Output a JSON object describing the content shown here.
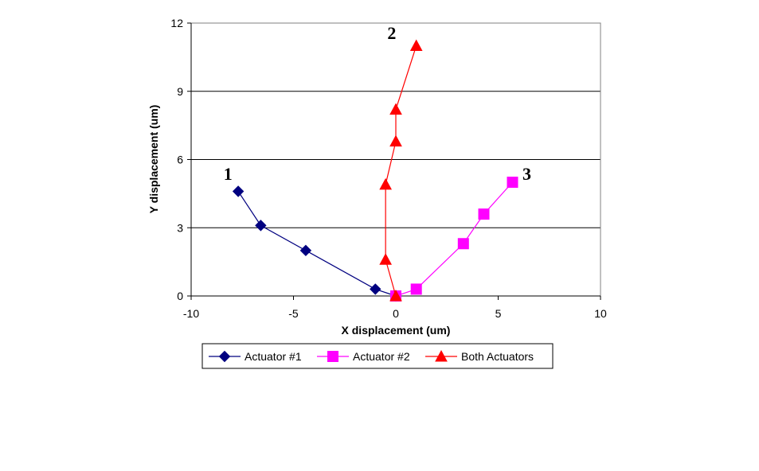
{
  "chart_data": {
    "type": "line",
    "xlabel": "X displacement (um)",
    "ylabel": "Y displacement (um)",
    "xlim": [
      -10,
      10
    ],
    "ylim": [
      0,
      12
    ],
    "xticks": [
      -10,
      -5,
      0,
      5,
      10
    ],
    "yticks": [
      0,
      3,
      6,
      9,
      12
    ],
    "grid": "horizontal",
    "legend_position": "bottom",
    "series": [
      {
        "name": "Actuator #1",
        "color": "#000080",
        "marker": "diamond",
        "x": [
          0,
          -1,
          -4.4,
          -6.6,
          -7.7
        ],
        "y": [
          0,
          0.3,
          2.0,
          3.1,
          4.6
        ]
      },
      {
        "name": "Actuator #2",
        "color": "#ff00ff",
        "marker": "square",
        "x": [
          0,
          1,
          3.3,
          4.3,
          5.7
        ],
        "y": [
          0,
          0.3,
          2.3,
          3.6,
          5.0
        ]
      },
      {
        "name": "Both Actuators",
        "color": "#ff0000",
        "marker": "triangle",
        "x": [
          0,
          -0.5,
          -0.5,
          0,
          0,
          1
        ],
        "y": [
          0,
          1.6,
          4.9,
          6.8,
          8.2,
          11.0
        ]
      }
    ],
    "annotations": [
      {
        "text": "1",
        "x": -8.2,
        "y": 5.1
      },
      {
        "text": "2",
        "x": -0.2,
        "y": 11.3
      },
      {
        "text": "3",
        "x": 6.4,
        "y": 5.1
      }
    ]
  }
}
